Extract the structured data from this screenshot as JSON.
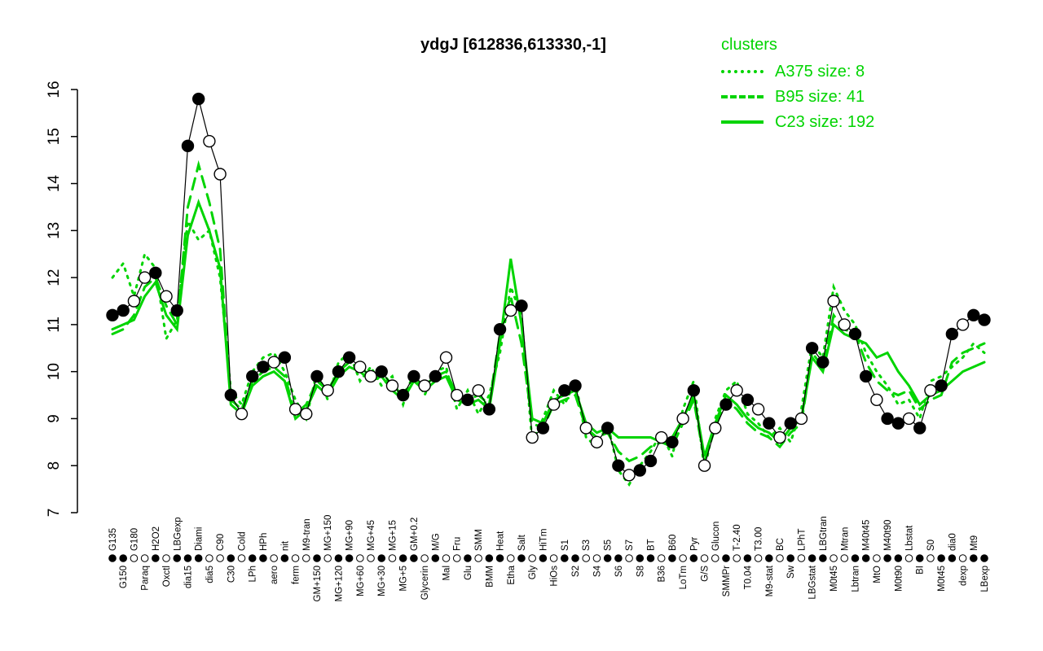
{
  "title": "ydgJ [612836,613330,-1]",
  "legend": {
    "title": "clusters",
    "items": [
      {
        "label": "A375 size: 8",
        "style": "dotted"
      },
      {
        "label": "B95 size: 41",
        "style": "dashed"
      },
      {
        "label": "C23 size: 192",
        "style": "solid"
      }
    ]
  },
  "colors": {
    "cluster_green": "#00d400",
    "gene_black": "#000000",
    "background": "#ffffff"
  },
  "chart_data": {
    "type": "line",
    "title": "ydgJ [612836,613330,-1]",
    "xlabel": "",
    "ylabel": "",
    "ylim": [
      7,
      16
    ],
    "yticks": [
      7,
      8,
      9,
      10,
      11,
      12,
      13,
      14,
      15,
      16
    ],
    "grid": false,
    "legend_position": "top-right",
    "categories": [
      "G135",
      "G150",
      "G180",
      "Paraq",
      "H2O2",
      "Oxctl",
      "LBGexp",
      "dia15",
      "Diami",
      "dia5",
      "C90",
      "C30",
      "Cold",
      "LPh",
      "HPh",
      "aero",
      "nit",
      "ferm",
      "M9-tran",
      "GM+150",
      "MG+150",
      "MG+120",
      "MG+90",
      "MG+60",
      "MG+45",
      "MG+30",
      "MG+15",
      "MG+5",
      "GM+0.2",
      "Glycerin",
      "M/G",
      "Mal",
      "Fru",
      "Glu",
      "SMM",
      "BMM",
      "Heat",
      "Etha",
      "Salt",
      "Gly",
      "HiTm",
      "HiOs",
      "S1",
      "S2",
      "S3",
      "S4",
      "S5",
      "S6",
      "S7",
      "S8",
      "BT",
      "B36",
      "B60",
      "LoTm",
      "Pyr",
      "G/S",
      "Glucon",
      "SMMPr",
      "T-2.40",
      "T0.04",
      "T3.00",
      "M9-stat",
      "BC",
      "Sw",
      "LPhT",
      "LBGstat",
      "LBGtran",
      "M0t45",
      "Mtran",
      "Lbtran",
      "M40t45",
      "MtO",
      "M40t90",
      "M0t90",
      "Lbstat",
      "BI",
      "S0",
      "M0t45",
      "dia0",
      "dexp",
      "Mt9",
      "LBexp"
    ],
    "marker_fills": [
      1,
      1,
      0,
      0,
      1,
      0,
      1,
      1,
      1,
      0,
      0,
      1,
      0,
      1,
      1,
      0,
      1,
      0,
      0,
      1,
      0,
      1,
      1,
      0,
      0,
      1,
      0,
      1,
      1,
      0,
      1,
      0,
      0,
      1,
      0,
      1,
      1,
      0,
      1,
      0,
      1,
      0,
      1,
      1,
      0,
      0,
      1,
      1,
      0,
      1,
      1,
      0,
      1,
      0,
      1,
      0,
      0,
      1,
      0,
      1,
      0,
      1,
      0,
      1,
      0,
      1,
      1,
      0,
      0,
      1,
      1,
      0,
      1,
      1,
      0,
      1,
      0,
      1,
      1,
      0,
      1,
      1
    ],
    "series": [
      {
        "name": "A375",
        "size": 8,
        "style": "dotted",
        "color": "#00d400",
        "values": [
          12.0,
          12.3,
          11.6,
          12.5,
          12.2,
          10.7,
          11.1,
          13.2,
          12.8,
          13.0,
          12.0,
          9.6,
          9.3,
          10.0,
          10.3,
          10.4,
          10.0,
          9.4,
          9.0,
          10.0,
          9.4,
          10.2,
          10.4,
          9.8,
          10.1,
          9.7,
          9.9,
          9.3,
          10.0,
          9.5,
          10.0,
          10.1,
          9.2,
          9.6,
          9.1,
          9.5,
          10.4,
          11.8,
          11.2,
          8.5,
          9.0,
          9.6,
          9.3,
          9.8,
          8.6,
          8.4,
          8.9,
          7.9,
          7.6,
          8.0,
          8.3,
          8.7,
          8.2,
          9.2,
          9.8,
          7.9,
          9.0,
          9.6,
          9.8,
          9.1,
          8.9,
          8.6,
          8.8,
          8.5,
          9.2,
          10.6,
          10.3,
          11.8,
          11.3,
          11.0,
          10.4,
          10.0,
          9.7,
          9.3,
          9.4,
          9.0,
          9.8,
          9.9,
          10.1,
          10.3,
          10.6,
          10.4
        ]
      },
      {
        "name": "B95",
        "size": 41,
        "style": "dashed",
        "color": "#00d400",
        "values": [
          10.8,
          10.9,
          11.2,
          11.8,
          12.0,
          11.4,
          11.0,
          13.5,
          14.4,
          13.6,
          12.6,
          9.4,
          9.2,
          9.8,
          10.0,
          10.1,
          9.9,
          9.1,
          9.3,
          9.8,
          9.6,
          10.0,
          10.2,
          10.1,
          9.9,
          10.0,
          9.7,
          9.5,
          9.9,
          9.7,
          9.9,
          10.0,
          9.5,
          9.4,
          9.5,
          9.3,
          10.8,
          11.6,
          10.6,
          8.9,
          8.8,
          9.3,
          9.4,
          9.5,
          8.8,
          8.6,
          8.7,
          8.3,
          8.1,
          8.2,
          8.4,
          8.5,
          8.4,
          8.9,
          9.4,
          8.1,
          8.8,
          9.4,
          9.2,
          8.9,
          8.7,
          8.6,
          8.4,
          8.7,
          8.9,
          10.4,
          10.1,
          11.2,
          10.9,
          10.8,
          10.2,
          9.8,
          9.6,
          9.5,
          9.6,
          9.2,
          9.4,
          9.5,
          10.2,
          10.4,
          10.5,
          10.6
        ]
      },
      {
        "name": "C23",
        "size": 192,
        "style": "solid",
        "color": "#00d400",
        "values": [
          10.9,
          11.0,
          11.1,
          11.6,
          11.9,
          11.2,
          10.9,
          12.9,
          13.6,
          13.0,
          12.2,
          9.3,
          9.1,
          9.7,
          9.9,
          10.0,
          9.8,
          9.0,
          9.2,
          9.7,
          9.5,
          9.9,
          10.1,
          10.0,
          9.8,
          9.9,
          9.6,
          9.4,
          9.8,
          9.6,
          9.8,
          9.9,
          9.4,
          9.3,
          9.4,
          9.2,
          10.6,
          12.4,
          11.0,
          9.0,
          8.9,
          9.4,
          9.5,
          9.6,
          8.9,
          8.7,
          8.8,
          8.6,
          8.6,
          8.6,
          8.6,
          8.5,
          8.6,
          9.0,
          9.5,
          8.2,
          8.9,
          9.5,
          9.3,
          9.0,
          8.8,
          8.7,
          8.5,
          8.8,
          9.0,
          10.3,
          10.0,
          11.0,
          10.8,
          10.7,
          10.6,
          10.3,
          10.4,
          10.0,
          9.7,
          9.3,
          9.5,
          9.6,
          9.8,
          10.0,
          10.1,
          10.2
        ]
      },
      {
        "name": "ydgJ",
        "style": "markers",
        "color": "#000000",
        "values": [
          11.2,
          11.3,
          11.5,
          12.0,
          12.1,
          11.6,
          11.3,
          14.8,
          15.8,
          14.9,
          14.2,
          9.5,
          9.1,
          9.9,
          10.1,
          10.2,
          10.3,
          9.2,
          9.1,
          9.9,
          9.6,
          10.0,
          10.3,
          10.1,
          9.9,
          10.0,
          9.7,
          9.5,
          9.9,
          9.7,
          9.9,
          10.3,
          9.5,
          9.4,
          9.6,
          9.2,
          10.9,
          11.3,
          11.4,
          8.6,
          8.8,
          9.3,
          9.6,
          9.7,
          8.8,
          8.5,
          8.8,
          8.0,
          7.8,
          7.9,
          8.1,
          8.6,
          8.5,
          9.0,
          9.6,
          8.0,
          8.8,
          9.3,
          9.6,
          9.4,
          9.2,
          8.9,
          8.6,
          8.9,
          9.0,
          10.5,
          10.2,
          11.5,
          11.0,
          10.8,
          9.9,
          9.4,
          9.0,
          8.9,
          9.0,
          8.8,
          9.6,
          9.7,
          10.8,
          11.0,
          11.2,
          11.1
        ]
      }
    ]
  }
}
